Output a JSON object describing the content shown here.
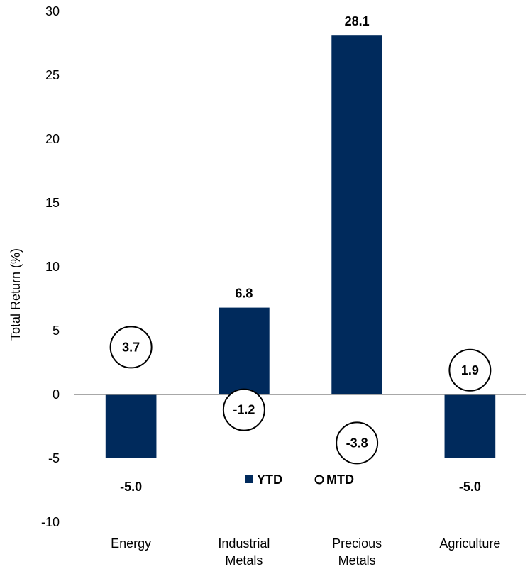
{
  "chart_data": {
    "type": "bar",
    "ylabel": "Total Return (%)",
    "ylim": [
      -10,
      30
    ],
    "yticks": [
      "30",
      "25",
      "20",
      "15",
      "10",
      "5",
      "0",
      "-5",
      "-10"
    ],
    "categories": [
      [
        "Energy"
      ],
      [
        "Industrial",
        "Metals"
      ],
      [
        "Precious",
        "Metals"
      ],
      [
        "Agriculture"
      ]
    ],
    "series": [
      {
        "name": "YTD",
        "marker": "bar",
        "values": [
          -5.0,
          6.8,
          28.1,
          -5.0
        ],
        "labels": [
          "-5.0",
          "6.8",
          "28.1",
          "-5.0"
        ],
        "color": "#002a5c"
      },
      {
        "name": "MTD",
        "marker": "circle",
        "values": [
          3.7,
          -1.2,
          -3.8,
          1.9
        ],
        "labels": [
          "3.7",
          "-1.2",
          "-3.8",
          "1.9"
        ],
        "color": "#000000"
      }
    ],
    "legend": {
      "placement": "bottom-center",
      "items": [
        "YTD",
        "MTD"
      ]
    },
    "grid": false
  }
}
